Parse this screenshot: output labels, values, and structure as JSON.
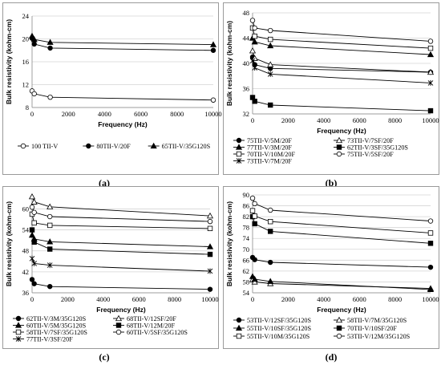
{
  "chart_data": [
    {
      "type": "line",
      "panel_label": "(a)",
      "xlabel": "Frequency (Hz)",
      "ylabel": "Bulk resistivity (kohm-cm)",
      "xlim": [
        0,
        10000
      ],
      "ylim": [
        8,
        24
      ],
      "xticks": [
        0,
        2000,
        4000,
        6000,
        8000,
        10000
      ],
      "yticks": [
        8,
        12,
        16,
        20,
        24
      ],
      "grid": "horizontal",
      "legend": "bottom",
      "x": [
        0,
        120,
        1000,
        10000
      ],
      "series": [
        {
          "name": "100 TII-V",
          "marker": "open-circle",
          "values": [
            10.9,
            10.4,
            9.8,
            9.3
          ]
        },
        {
          "name": "80TII-V/20F",
          "marker": "filled-circle",
          "values": [
            20.1,
            19.1,
            18.4,
            18.0
          ]
        },
        {
          "name": "65TII-V/35G120S",
          "marker": "filled-triangle",
          "values": [
            20.5,
            19.9,
            19.4,
            19.0
          ]
        }
      ]
    },
    {
      "type": "line",
      "panel_label": "(b)",
      "xlabel": "Frequency (Hz)",
      "ylabel": "Bulk resistivity (kohm-cm)",
      "xlim": [
        0,
        10000
      ],
      "ylim": [
        32,
        48
      ],
      "xticks": [
        0,
        2000,
        4000,
        6000,
        8000,
        10000
      ],
      "yticks": [
        32,
        36,
        40,
        44,
        48
      ],
      "grid": "horizontal",
      "legend": "bottom",
      "x": [
        0,
        120,
        1000,
        10000
      ],
      "series": [
        {
          "name": "75TII-V/5M/20F",
          "marker": "filled-circle",
          "values": [
            41.0,
            39.8,
            39.2,
            38.6
          ]
        },
        {
          "name": "73TII-V/7SF/20F",
          "marker": "open-triangle",
          "values": [
            42.0,
            40.8,
            39.8,
            38.6
          ]
        },
        {
          "name": "77TII-V/3M/20F",
          "marker": "filled-triangle",
          "values": [
            44.0,
            43.4,
            42.8,
            41.4
          ]
        },
        {
          "name": "62TII-V/3SF/35G120S",
          "marker": "filled-square",
          "values": [
            34.6,
            34.0,
            33.4,
            32.5
          ]
        },
        {
          "name": "70TII-V/10M/20F",
          "marker": "open-square",
          "values": [
            45.6,
            44.3,
            43.8,
            42.4
          ]
        },
        {
          "name": "75TII-V/5SF/20F",
          "marker": "open-circle",
          "values": [
            46.8,
            45.6,
            45.2,
            43.5
          ]
        },
        {
          "name": "73TII-V/7M/20F",
          "marker": "star",
          "values": [
            40.4,
            39.3,
            38.3,
            36.9
          ]
        }
      ]
    },
    {
      "type": "line",
      "panel_label": "(c)",
      "xlabel": "Frequency (Hz)",
      "ylabel": "Bulk resistivity (kohm-cm)",
      "xlim": [
        0,
        10000
      ],
      "ylim": [
        36,
        64
      ],
      "xticks": [
        0,
        2000,
        4000,
        6000,
        8000,
        10000
      ],
      "yticks": [
        36,
        42,
        48,
        54,
        60
      ],
      "grid": "horizontal",
      "legend": "bottom",
      "x": [
        0,
        120,
        1000,
        10000
      ],
      "series": [
        {
          "name": "62TII-V/3M/35G120S",
          "marker": "filled-circle",
          "values": [
            39.8,
            38.6,
            37.8,
            37.0
          ]
        },
        {
          "name": "68TII-V/12SF/20F",
          "marker": "open-triangle",
          "values": [
            63.5,
            62.0,
            60.6,
            58.0
          ]
        },
        {
          "name": "60TII-V/5M/35G120S",
          "marker": "filled-triangle",
          "values": [
            52.5,
            51.4,
            50.6,
            49.2
          ]
        },
        {
          "name": "68TII-V/12M/20F",
          "marker": "filled-square",
          "values": [
            54.0,
            50.5,
            48.5,
            47.0
          ]
        },
        {
          "name": "58TII-V/7SF/35G120S",
          "marker": "open-square",
          "values": [
            58.5,
            56.0,
            55.3,
            54.4
          ]
        },
        {
          "name": "60TII-V/5SF/35G120S",
          "marker": "open-circle",
          "values": [
            60.5,
            59.0,
            57.8,
            56.4
          ]
        },
        {
          "name": "77TII-V/3SF/20F",
          "marker": "star",
          "values": [
            45.8,
            44.4,
            43.9,
            42.2
          ]
        }
      ]
    },
    {
      "type": "line",
      "panel_label": "(d)",
      "xlabel": "Frequency (Hz)",
      "ylabel": "Bulk resistivity (kohm-cm)",
      "xlim": [
        0,
        10000
      ],
      "ylim": [
        54,
        90
      ],
      "xticks": [
        0,
        2000,
        4000,
        6000,
        8000,
        10000
      ],
      "yticks": [
        54,
        58,
        62,
        66,
        70,
        74,
        78,
        82,
        86,
        90
      ],
      "grid": "horizontal",
      "legend": "bottom",
      "x": [
        0,
        120,
        1000,
        10000
      ],
      "series": [
        {
          "name": "53TII-V/12SF/35G120S",
          "marker": "filled-circle",
          "values": [
            67.0,
            66.2,
            65.2,
            63.4
          ]
        },
        {
          "name": "58TII-V/7M/35G120S",
          "marker": "open-triangle",
          "values": [
            58.8,
            58.0,
            57.4,
            55.6
          ]
        },
        {
          "name": "55TII-V/10SF/35G120S",
          "marker": "filled-triangle",
          "values": [
            60.0,
            59.0,
            58.2,
            55.2
          ]
        },
        {
          "name": "70TII-V/10SF/20F",
          "marker": "filled-square",
          "values": [
            82.0,
            79.4,
            76.6,
            72.2
          ]
        },
        {
          "name": "55TII-V/10M/35G120S",
          "marker": "open-square",
          "values": [
            84.2,
            82.2,
            80.2,
            76.0
          ]
        },
        {
          "name": "53TII-V/12M/35G120S",
          "marker": "open-circle",
          "values": [
            88.8,
            86.8,
            84.4,
            80.4
          ]
        }
      ]
    }
  ]
}
